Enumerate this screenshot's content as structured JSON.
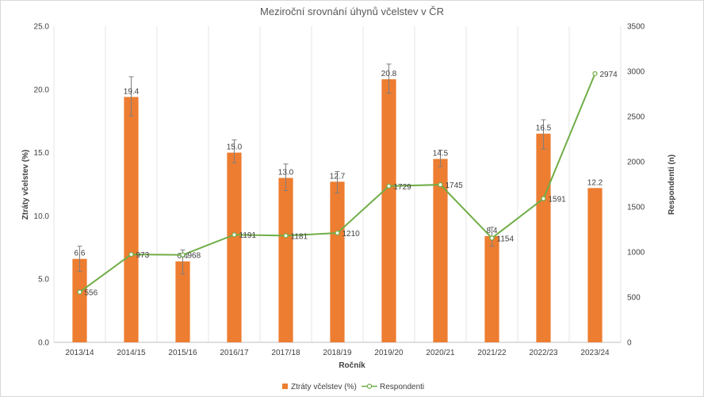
{
  "chart_data": {
    "type": "bar",
    "title": "Meziroční srovnání úhynů včelstev v ČR",
    "xlabel": "Ročník",
    "ylabel": "Ztráty včelstev (%)",
    "y2label": "Respondenti (n)",
    "categories": [
      "2013/14",
      "2014/15",
      "2015/16",
      "2016/17",
      "2017/18",
      "2018/19",
      "2019/20",
      "2020/21",
      "2021/22",
      "2022/23",
      "2023/24"
    ],
    "ylim": [
      0,
      25
    ],
    "y2lim": [
      0,
      3500
    ],
    "yticks": [
      "0.0",
      "5.0",
      "10.0",
      "15.0",
      "20.0",
      "25.0"
    ],
    "y2ticks": [
      "0",
      "500",
      "1000",
      "1500",
      "2000",
      "2500",
      "3000",
      "3500"
    ],
    "grid": "vertical",
    "legend_position": "bottom",
    "series": [
      {
        "name": "Ztráty včelstev (%)",
        "kind": "bar",
        "axis": "left",
        "color": "#ed7d31",
        "values": [
          6.6,
          19.4,
          6.4,
          15.0,
          13.0,
          12.7,
          20.8,
          14.5,
          8.4,
          16.5,
          12.2
        ],
        "labels": [
          "6.6",
          "19.4",
          "6.4",
          "15.0",
          "13.0",
          "12.7",
          "20.8",
          "14.5",
          "8.4",
          "16.5",
          "12.2"
        ],
        "error": [
          [
            5.6,
            7.6
          ],
          [
            17.9,
            21.0
          ],
          [
            5.4,
            7.3
          ],
          [
            14.2,
            16.0
          ],
          [
            12.0,
            14.1
          ],
          [
            11.8,
            13.5
          ],
          [
            19.7,
            22.0
          ],
          [
            13.9,
            15.2
          ],
          [
            7.6,
            9.1
          ],
          [
            15.3,
            17.6
          ],
          [
            null,
            null
          ]
        ]
      },
      {
        "name": "Respondenti",
        "kind": "line",
        "axis": "right",
        "color": "#70ad47",
        "values": [
          556,
          973,
          968,
          1191,
          1181,
          1210,
          1729,
          1745,
          1154,
          1591,
          2974
        ],
        "labels": [
          "556",
          "973",
          "968",
          "1191",
          "1181",
          "1210",
          "1729",
          "1745",
          "1154",
          "1591",
          "2974"
        ]
      }
    ]
  }
}
